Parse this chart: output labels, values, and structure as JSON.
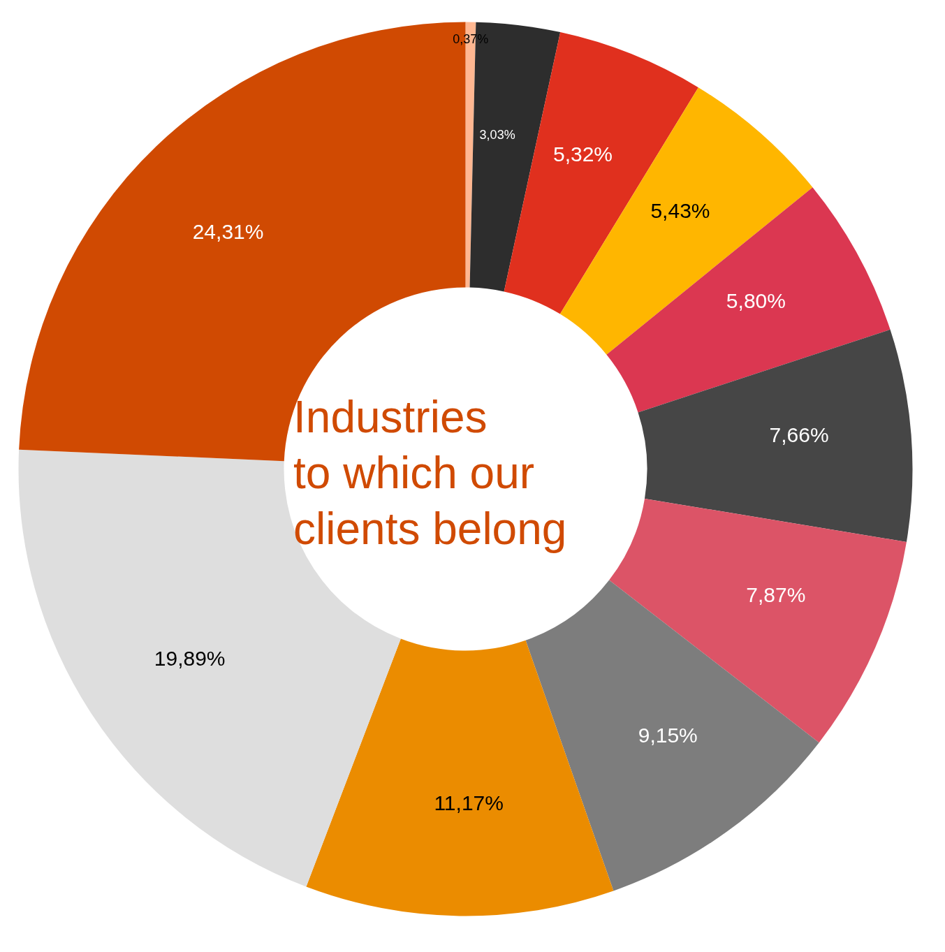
{
  "chart_data": {
    "type": "donut",
    "title": "Industries\nto which our\nclients belong",
    "categories": [
      null,
      null,
      null,
      null,
      null,
      null,
      null,
      null,
      null,
      null,
      null
    ],
    "values": [
      0.37,
      3.03,
      5.32,
      5.43,
      5.8,
      7.66,
      7.87,
      9.15,
      11.17,
      19.89,
      24.31
    ],
    "value_labels": [
      "0,37%",
      "3,03%",
      "5,32%",
      "5,43%",
      "5,80%",
      "7,66%",
      "7,87%",
      "9,15%",
      "11,17%",
      "19,89%",
      "24,31%"
    ],
    "colors": [
      "#ffb791",
      "#2d2d2d",
      "#e0301e",
      "#ffb600",
      "#db3751",
      "#464646",
      "#dc5467",
      "#7d7d7d",
      "#eb8c00",
      "#dedede",
      "#d04a02"
    ]
  }
}
